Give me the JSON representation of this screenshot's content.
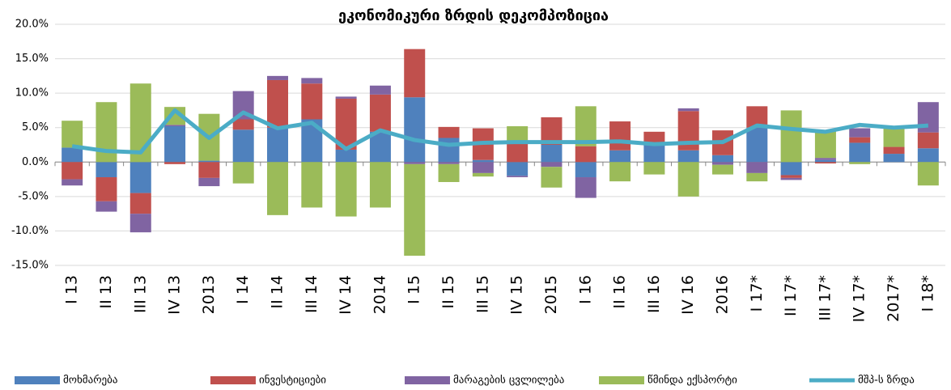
{
  "chart_data": {
    "type": "bar",
    "stacked": true,
    "title": "ეკონომიკური ზრდის დეკომპოზიცია",
    "categories": [
      "I 13",
      "II 13",
      "III 13",
      "IV 13",
      "2013",
      "I 14",
      "II 14",
      "III 14",
      "IV 14",
      "2014",
      "I 15",
      "II 15",
      "III 15",
      "IV 15",
      "2015",
      "I 16",
      "II 16",
      "III 16",
      "IV 16",
      "2016",
      "I 17*",
      "II 17*",
      "III 17*",
      "IV 17*",
      "2017*",
      "I 18*"
    ],
    "series": [
      {
        "name": "მოხმარება",
        "color": "#4f81bd",
        "values": [
          2.1,
          -2.2,
          -4.5,
          5.2,
          0.2,
          4.7,
          5.0,
          6.2,
          1.8,
          4.4,
          9.4,
          3.5,
          0.3,
          -2.0,
          2.5,
          -2.2,
          1.7,
          2.8,
          1.7,
          1.0,
          5.0,
          -1.9,
          0.3,
          2.8,
          1.2,
          2.0
        ]
      },
      {
        "name": "ინვესტიციები",
        "color": "#c0504d",
        "values": [
          -2.5,
          -3.5,
          -3.0,
          -0.3,
          -2.3,
          1.5,
          6.9,
          5.2,
          7.4,
          5.4,
          7.0,
          1.6,
          4.6,
          3.0,
          4.0,
          2.3,
          4.2,
          1.6,
          5.7,
          3.6,
          3.1,
          -0.4,
          -0.2,
          0.8,
          1.0,
          2.3
        ]
      },
      {
        "name": "მარაგების ცვლილება",
        "color": "#8064a2",
        "values": [
          -0.9,
          -1.5,
          -2.7,
          0.2,
          -1.2,
          4.1,
          0.6,
          0.8,
          0.3,
          1.3,
          -0.3,
          -0.3,
          -1.6,
          -0.2,
          -0.7,
          -3.0,
          0.0,
          0.0,
          0.4,
          -0.4,
          -1.6,
          -0.3,
          0.3,
          1.3,
          0.0,
          4.4
        ]
      },
      {
        "name": "წმინდა ექსპორტი",
        "color": "#9bbb59",
        "values": [
          3.9,
          8.7,
          11.4,
          2.6,
          6.8,
          -3.1,
          -7.7,
          -6.6,
          -7.9,
          -6.6,
          -13.3,
          -2.6,
          -0.5,
          2.2,
          -3.0,
          5.8,
          -2.8,
          -1.8,
          -5.0,
          -1.4,
          -1.2,
          7.5,
          3.9,
          -0.3,
          2.8,
          -3.4
        ]
      },
      {
        "name": "მშპ-ს ზრდა",
        "color": "#4bacc6",
        "type": "line",
        "values": [
          2.3,
          1.6,
          1.4,
          7.5,
          3.5,
          7.2,
          4.9,
          5.7,
          1.9,
          4.6,
          3.2,
          2.5,
          2.8,
          2.9,
          2.9,
          2.9,
          3.0,
          2.6,
          2.8,
          2.9,
          5.3,
          4.8,
          4.4,
          5.4,
          5.0,
          5.3
        ]
      }
    ],
    "ylim": [
      -15,
      20
    ],
    "yticks": [
      {
        "value": -15,
        "label": "-15.0%"
      },
      {
        "value": -10,
        "label": "-10.0%"
      },
      {
        "value": -5,
        "label": "-5.0%"
      },
      {
        "value": 0,
        "label": "0.0%"
      },
      {
        "value": 5,
        "label": "5.0%"
      },
      {
        "value": 10,
        "label": "10.0%"
      },
      {
        "value": 15,
        "label": "15.0%"
      },
      {
        "value": 20,
        "label": "20.0%"
      }
    ],
    "grid": true,
    "legend": "bottom"
  }
}
